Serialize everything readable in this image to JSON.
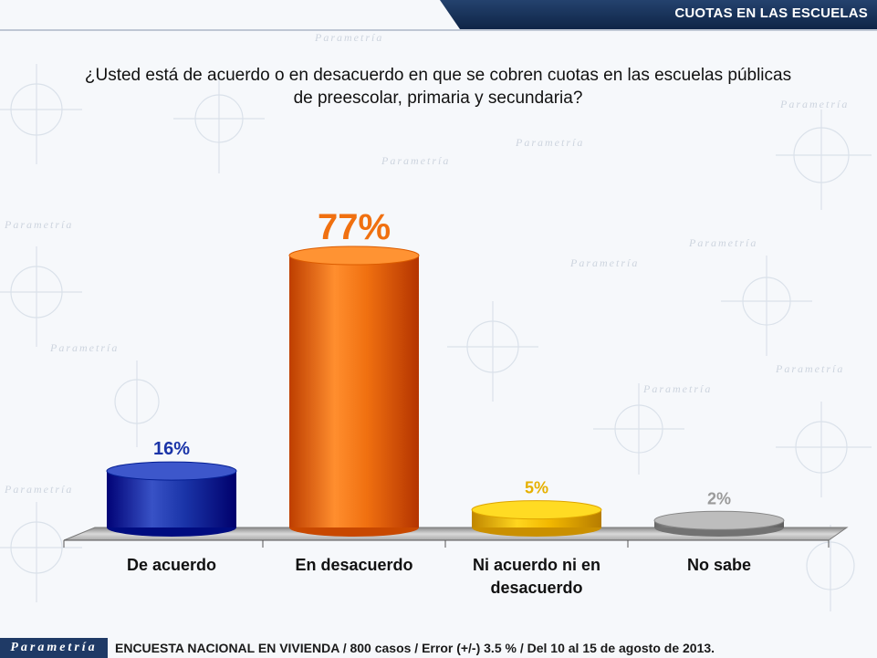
{
  "header": {
    "title": "CUOTAS EN LAS ESCUELAS"
  },
  "question": {
    "line1": "¿Usted está de acuerdo o en desacuerdo en que se cobren cuotas en las escuelas públicas",
    "line2": "de preescolar, primaria y secundaria?"
  },
  "footer": {
    "logo": "Parametría",
    "note": "ENCUESTA NACIONAL EN VIVIENDA / 800 casos / Error (+/-) 3.5 % / Del 10 al 15 de agosto de 2013."
  },
  "colors": {
    "header": "#1f3a66",
    "de_acuerdo": "#1a34a8",
    "en_desacuerdo": "#f07010",
    "ni_ni": "#f2b800",
    "no_sabe": "#9a9a9a"
  },
  "chart_data": {
    "type": "bar",
    "categories": [
      "De acuerdo",
      "En desacuerdo",
      "Ni acuerdo ni en desacuerdo",
      "No sabe"
    ],
    "category_lines": [
      [
        "De acuerdo"
      ],
      [
        "En desacuerdo"
      ],
      [
        "Ni acuerdo ni en",
        "desacuerdo"
      ],
      [
        "No sabe"
      ]
    ],
    "values": [
      16,
      77,
      5,
      2
    ],
    "value_labels": [
      "16%",
      "77%",
      "5%",
      "2%"
    ],
    "unit": "%",
    "ylim": [
      0,
      80
    ],
    "grid": false,
    "legend": "none"
  }
}
